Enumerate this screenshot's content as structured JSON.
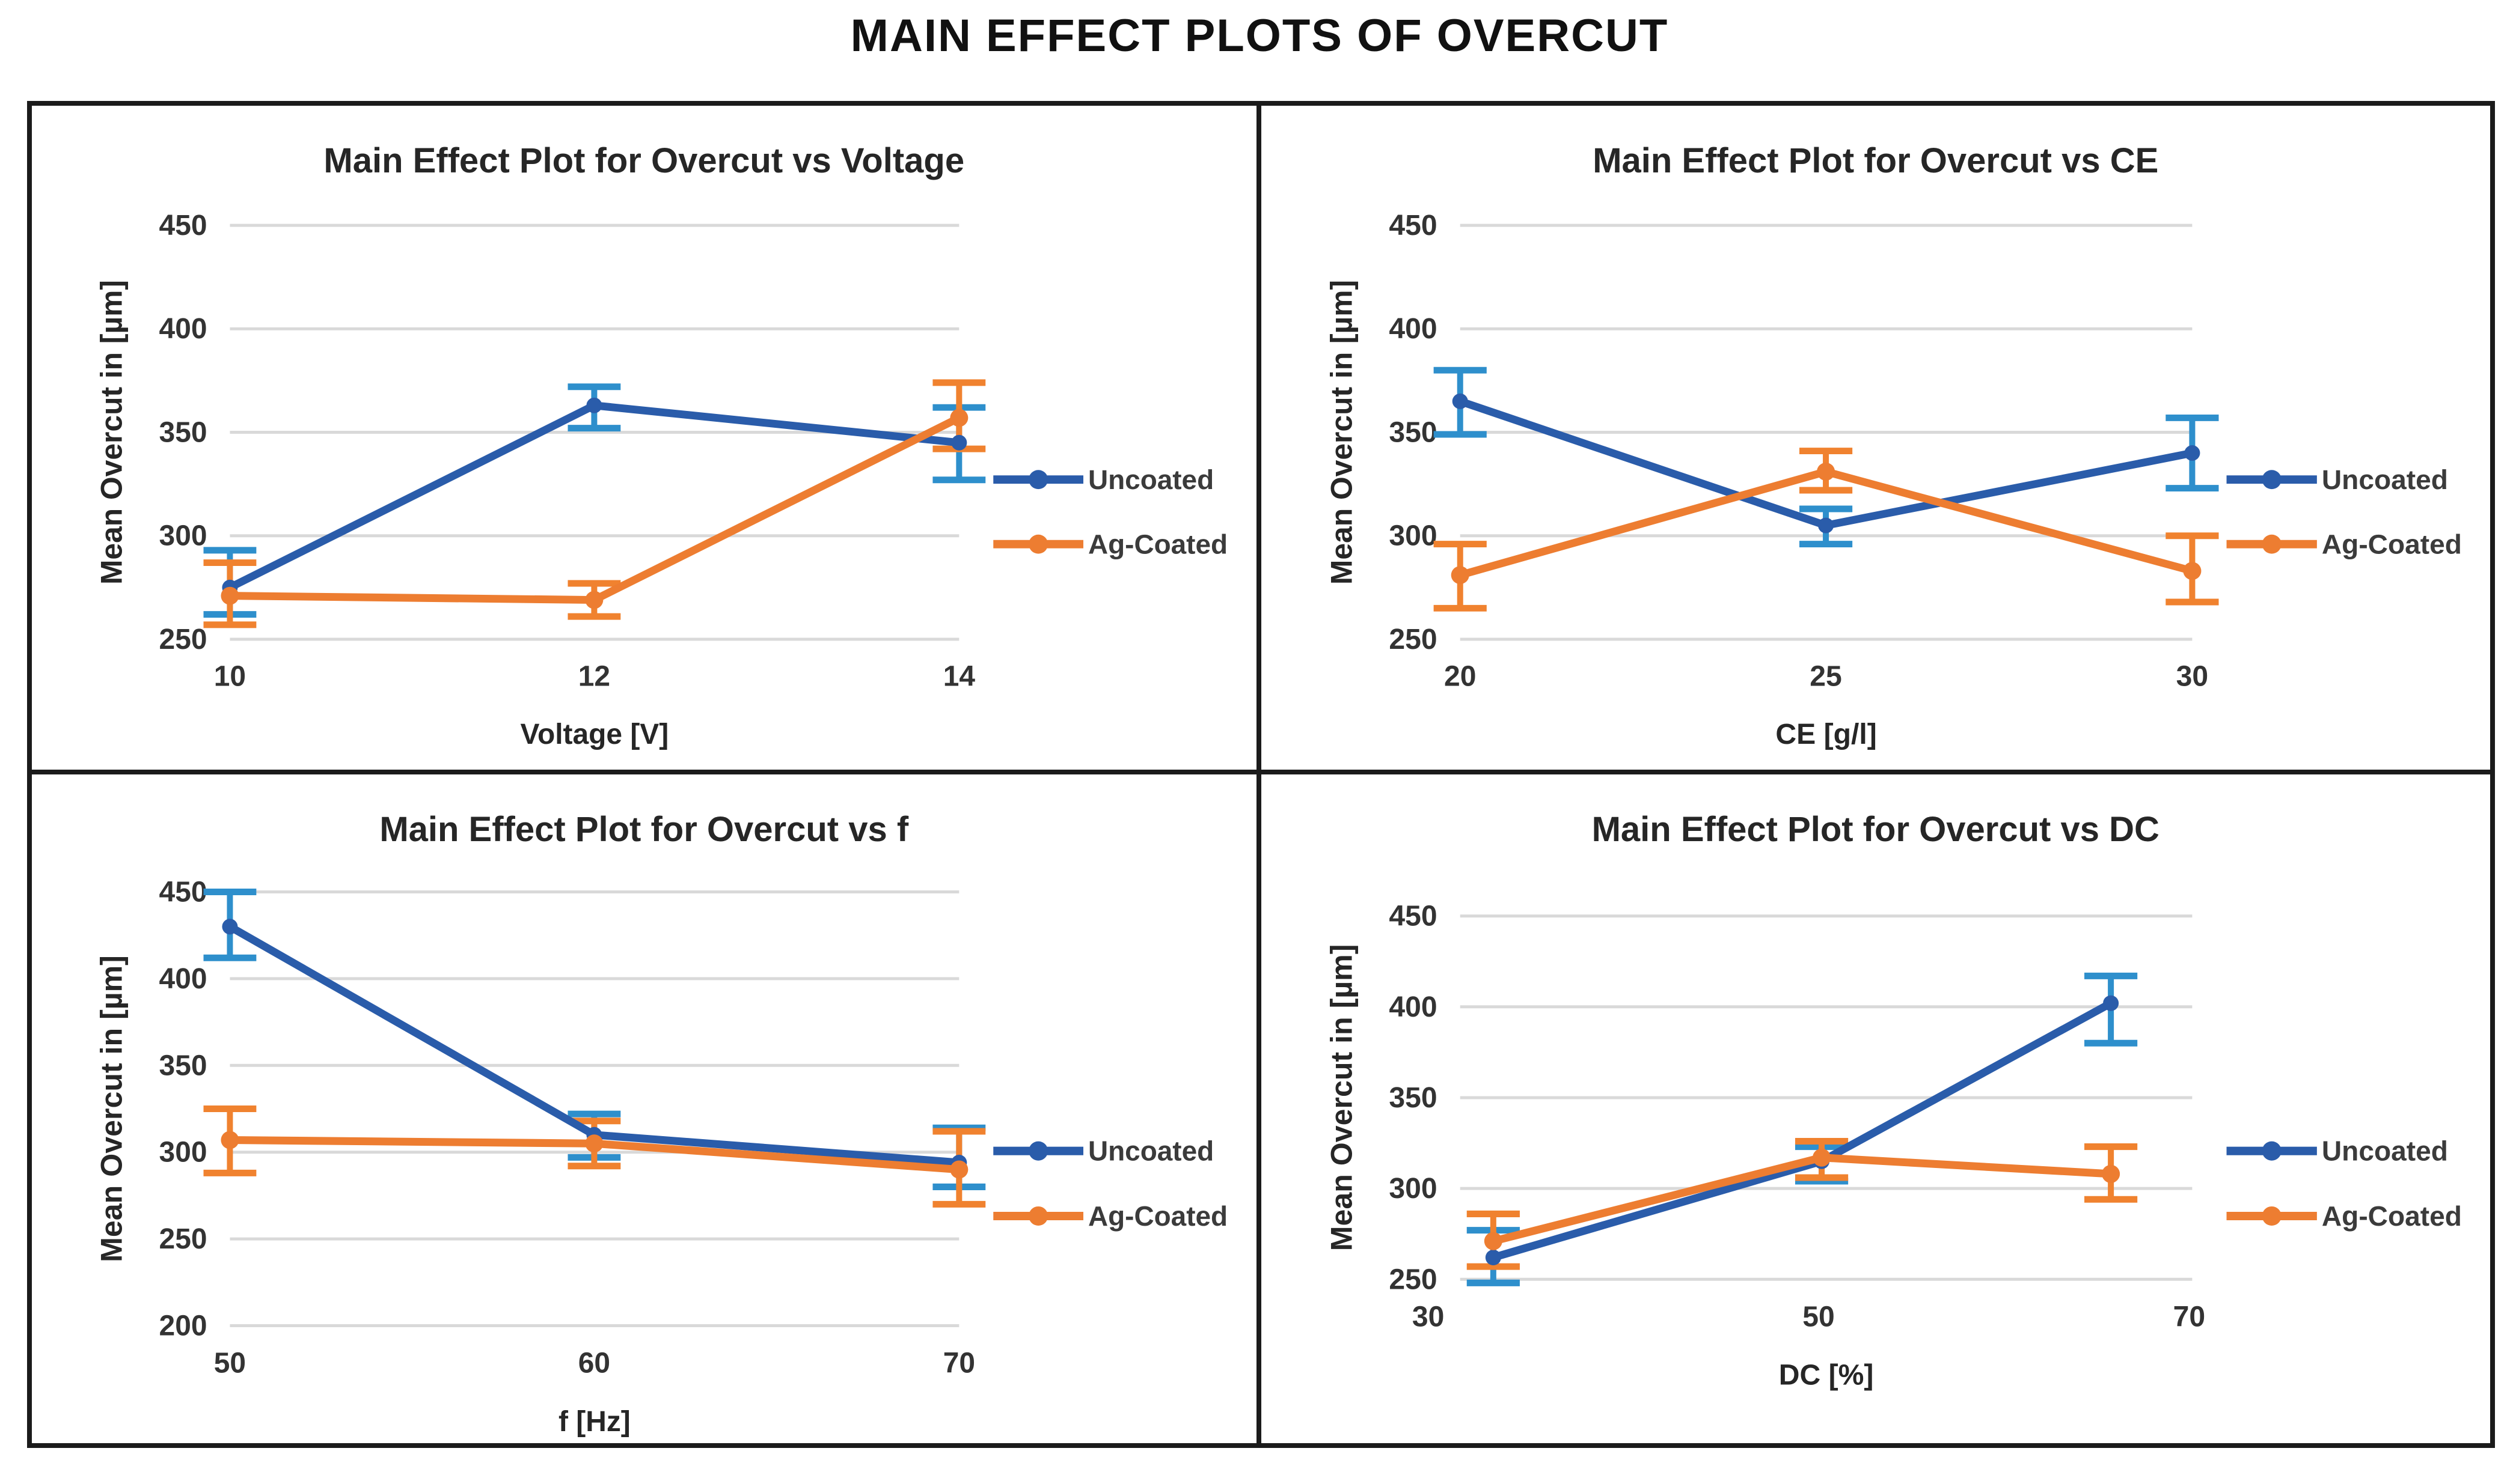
{
  "page": {
    "title": "MAIN EFFECT PLOTS OF OVERCUT"
  },
  "colors": {
    "uncoated_line": "#2A5CAA",
    "uncoated_error": "#2E8FCC",
    "agcoated_line": "#ED7D31",
    "agcoated_error": "#F0822F",
    "gridline": "#D9D9D9",
    "text": "#333333",
    "border": "#1b1b1b"
  },
  "legend": {
    "entries": [
      "Uncoated",
      "Ag-Coated"
    ]
  },
  "chart_data": [
    {
      "type": "line",
      "title": "Main Effect Plot for Overcut vs Voltage",
      "xlabel": "Voltage [V]",
      "ylabel": "Mean Overcut in [µm]",
      "categories": [
        10,
        12,
        14
      ],
      "ylim": [
        250,
        450
      ],
      "ytick_step": 50,
      "grid": true,
      "legend_position": "right",
      "series": [
        {
          "name": "Uncoated",
          "color": "#2A5CAA",
          "error_color": "#2E8FCC",
          "values": [
            275,
            363,
            345
          ],
          "error_low": [
            262,
            352,
            327
          ],
          "error_high": [
            293,
            372,
            362
          ]
        },
        {
          "name": "Ag-Coated",
          "color": "#ED7D31",
          "error_color": "#F0822F",
          "values": [
            271,
            269,
            357
          ],
          "error_low": [
            257,
            261,
            342
          ],
          "error_high": [
            287,
            277,
            374
          ]
        }
      ]
    },
    {
      "type": "line",
      "title": "Main Effect Plot for Overcut vs CE",
      "xlabel": "CE [g/l]",
      "ylabel": "Mean Overcut in [µm]",
      "categories": [
        20,
        25,
        30
      ],
      "ylim": [
        250,
        450
      ],
      "ytick_step": 50,
      "grid": true,
      "legend_position": "right",
      "series": [
        {
          "name": "Uncoated",
          "color": "#2A5CAA",
          "error_color": "#2E8FCC",
          "values": [
            365,
            305,
            340
          ],
          "error_low": [
            349,
            296,
            323
          ],
          "error_high": [
            380,
            313,
            357
          ]
        },
        {
          "name": "Ag-Coated",
          "color": "#ED7D31",
          "error_color": "#F0822F",
          "values": [
            281,
            331,
            283
          ],
          "error_low": [
            265,
            322,
            268
          ],
          "error_high": [
            296,
            341,
            300
          ]
        }
      ]
    },
    {
      "type": "line",
      "title": "Main Effect Plot for Overcut vs f",
      "xlabel": "f [Hz]",
      "ylabel": "Mean Overcut in [µm]",
      "categories": [
        50,
        60,
        70
      ],
      "ylim": [
        200,
        450
      ],
      "ytick_step": 50,
      "grid": true,
      "legend_position": "right",
      "series": [
        {
          "name": "Uncoated",
          "color": "#2A5CAA",
          "error_color": "#2E8FCC",
          "values": [
            430,
            310,
            294
          ],
          "error_low": [
            412,
            297,
            280
          ],
          "error_high": [
            450,
            322,
            314
          ]
        },
        {
          "name": "Ag-Coated",
          "color": "#ED7D31",
          "error_color": "#F0822F",
          "values": [
            307,
            305,
            290
          ],
          "error_low": [
            288,
            292,
            270
          ],
          "error_high": [
            325,
            318,
            312
          ]
        }
      ]
    },
    {
      "type": "line",
      "title": "Main Effect Plot for Overcut vs DC",
      "xlabel": "DC [%]",
      "ylabel": "Mean Overcut in [µm]",
      "categories": [
        30,
        50,
        70
      ],
      "ylim": [
        250,
        450
      ],
      "ytick_step": 50,
      "grid": true,
      "legend_position": "right",
      "series": [
        {
          "name": "Uncoated",
          "color": "#2A5CAA",
          "error_color": "#2E8FCC",
          "values": [
            262,
            315,
            402
          ],
          "error_low": [
            248,
            304,
            380
          ],
          "error_high": [
            277,
            323,
            417
          ]
        },
        {
          "name": "Ag-Coated",
          "color": "#ED7D31",
          "error_color": "#F0822F",
          "values": [
            271,
            317,
            308
          ],
          "error_low": [
            257,
            306,
            294
          ],
          "error_high": [
            286,
            326,
            323
          ]
        }
      ]
    }
  ]
}
